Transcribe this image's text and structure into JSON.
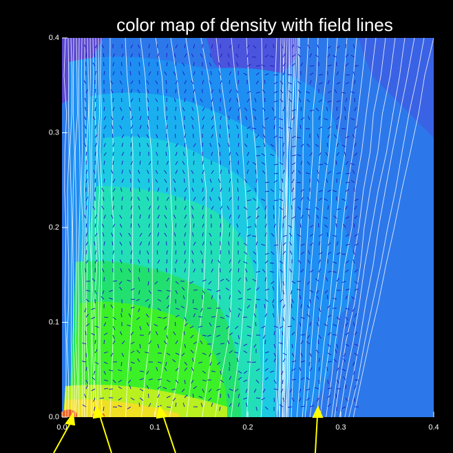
{
  "chart_data": {
    "type": "colormap",
    "title": "color map of density with field lines",
    "xlim": [
      0,
      0.4
    ],
    "ylim": [
      0,
      0.4
    ],
    "xticks": [
      {
        "value": 0,
        "label": "0.0"
      },
      0.1,
      0.2,
      0.3,
      0.4
    ],
    "yticks": [
      {
        "value": 0,
        "label": "0.0"
      },
      0.1,
      0.2,
      0.3,
      0.4
    ]
  }
}
